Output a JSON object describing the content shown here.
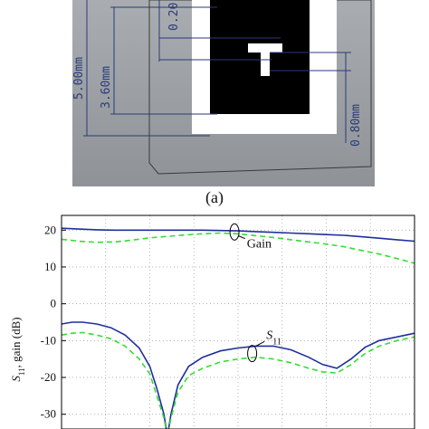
{
  "panel_a": {
    "caption": "(a)",
    "dimensions": {
      "outer": "5.00mm",
      "inner": "3.60mm",
      "top": "0.20",
      "gap": "0.80mm"
    },
    "colors": {
      "background": "#9ea2a6",
      "patch": "#000000",
      "substrate": "#ffffff",
      "dimension": "#2a3a7a"
    }
  },
  "chart_data": {
    "type": "line",
    "ylabel": "S11, gain (dB)",
    "ylim": [
      -34,
      24
    ],
    "yticks": [
      20,
      10,
      0,
      -10,
      -20,
      -30
    ],
    "xlim": [
      0,
      1
    ],
    "grid": true,
    "annotations": [
      {
        "text": "Gain",
        "x": 0.49,
        "y": 17.2
      },
      {
        "text": "S11",
        "x": 0.56,
        "y": -9.5
      }
    ],
    "series": [
      {
        "color": "#1f2f9c",
        "style": "solid",
        "x": [
          0,
          0.05,
          0.1,
          0.15,
          0.2,
          0.25,
          0.3,
          0.35,
          0.4,
          0.45,
          0.5,
          0.55,
          0.6,
          0.65,
          0.7,
          0.75,
          0.8,
          0.85,
          0.9,
          0.95,
          1
        ],
        "values": [
          20.5,
          20.3,
          20.1,
          20.0,
          20.0,
          20.0,
          20.0,
          20.0,
          20.0,
          19.9,
          19.8,
          19.6,
          19.4,
          19.2,
          19.0,
          18.8,
          18.6,
          18.2,
          17.8,
          17.4,
          17.0
        ]
      },
      {
        "color": "#33dd33",
        "style": "dashed",
        "x": [
          0,
          0.05,
          0.1,
          0.15,
          0.2,
          0.25,
          0.3,
          0.35,
          0.4,
          0.45,
          0.5,
          0.55,
          0.6,
          0.65,
          0.7,
          0.75,
          0.8,
          0.85,
          0.9,
          0.95,
          1
        ],
        "values": [
          17.5,
          17.0,
          16.7,
          16.8,
          17.3,
          17.9,
          18.3,
          18.7,
          19.0,
          19.2,
          19.0,
          18.5,
          18.0,
          17.4,
          16.8,
          16.2,
          15.5,
          14.5,
          13.5,
          12.3,
          11.0
        ]
      },
      {
        "color": "#1f2f9c",
        "style": "solid",
        "x": [
          0,
          0.03,
          0.06,
          0.1,
          0.14,
          0.18,
          0.22,
          0.25,
          0.27,
          0.29,
          0.3,
          0.31,
          0.33,
          0.36,
          0.4,
          0.45,
          0.5,
          0.55,
          0.6,
          0.65,
          0.7,
          0.74,
          0.78,
          0.82,
          0.86,
          0.9,
          0.95,
          1
        ],
        "values": [
          -5.5,
          -5.0,
          -5.0,
          -5.5,
          -6.5,
          -8.5,
          -12.0,
          -17.0,
          -23.0,
          -30.0,
          -36.0,
          -30.0,
          -22.0,
          -17.0,
          -14.5,
          -12.8,
          -12.0,
          -11.5,
          -11.5,
          -12.5,
          -14.5,
          -16.5,
          -17.5,
          -15.0,
          -11.8,
          -10.0,
          -9.0,
          -8.0
        ]
      },
      {
        "color": "#33dd33",
        "style": "dashed",
        "x": [
          0,
          0.03,
          0.06,
          0.1,
          0.14,
          0.18,
          0.22,
          0.25,
          0.27,
          0.29,
          0.3,
          0.31,
          0.33,
          0.36,
          0.4,
          0.45,
          0.5,
          0.55,
          0.6,
          0.65,
          0.7,
          0.74,
          0.78,
          0.82,
          0.86,
          0.9,
          0.95,
          1
        ],
        "values": [
          -8.5,
          -8.0,
          -7.8,
          -8.5,
          -9.5,
          -11.5,
          -15.0,
          -19.0,
          -25.0,
          -31.0,
          -36.0,
          -31.0,
          -24.0,
          -19.5,
          -17.5,
          -15.8,
          -15.0,
          -14.5,
          -15.0,
          -16.0,
          -17.5,
          -18.5,
          -18.8,
          -16.5,
          -13.5,
          -11.5,
          -10.0,
          -9.0
        ]
      }
    ]
  }
}
